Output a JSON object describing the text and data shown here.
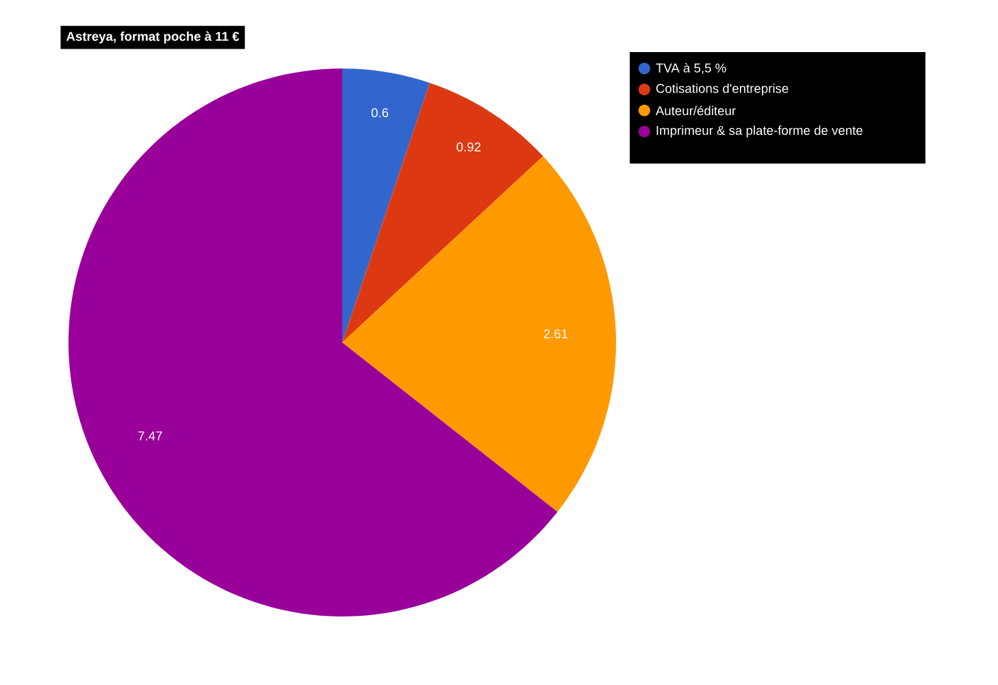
{
  "chart_data": {
    "type": "pie",
    "title": "Astreya, format poche à 11 €",
    "categories": [
      "TVA à 5,5 %",
      "Cotisations d'entreprise",
      "Auteur/éditeur",
      "Imprimeur & sa plate-forme de vente"
    ],
    "values": [
      0.6,
      0.92,
      2.61,
      7.47
    ],
    "colors": [
      "#3366cc",
      "#dc3912",
      "#ff9900",
      "#990099"
    ],
    "data_labels": true,
    "legend": "top right"
  }
}
